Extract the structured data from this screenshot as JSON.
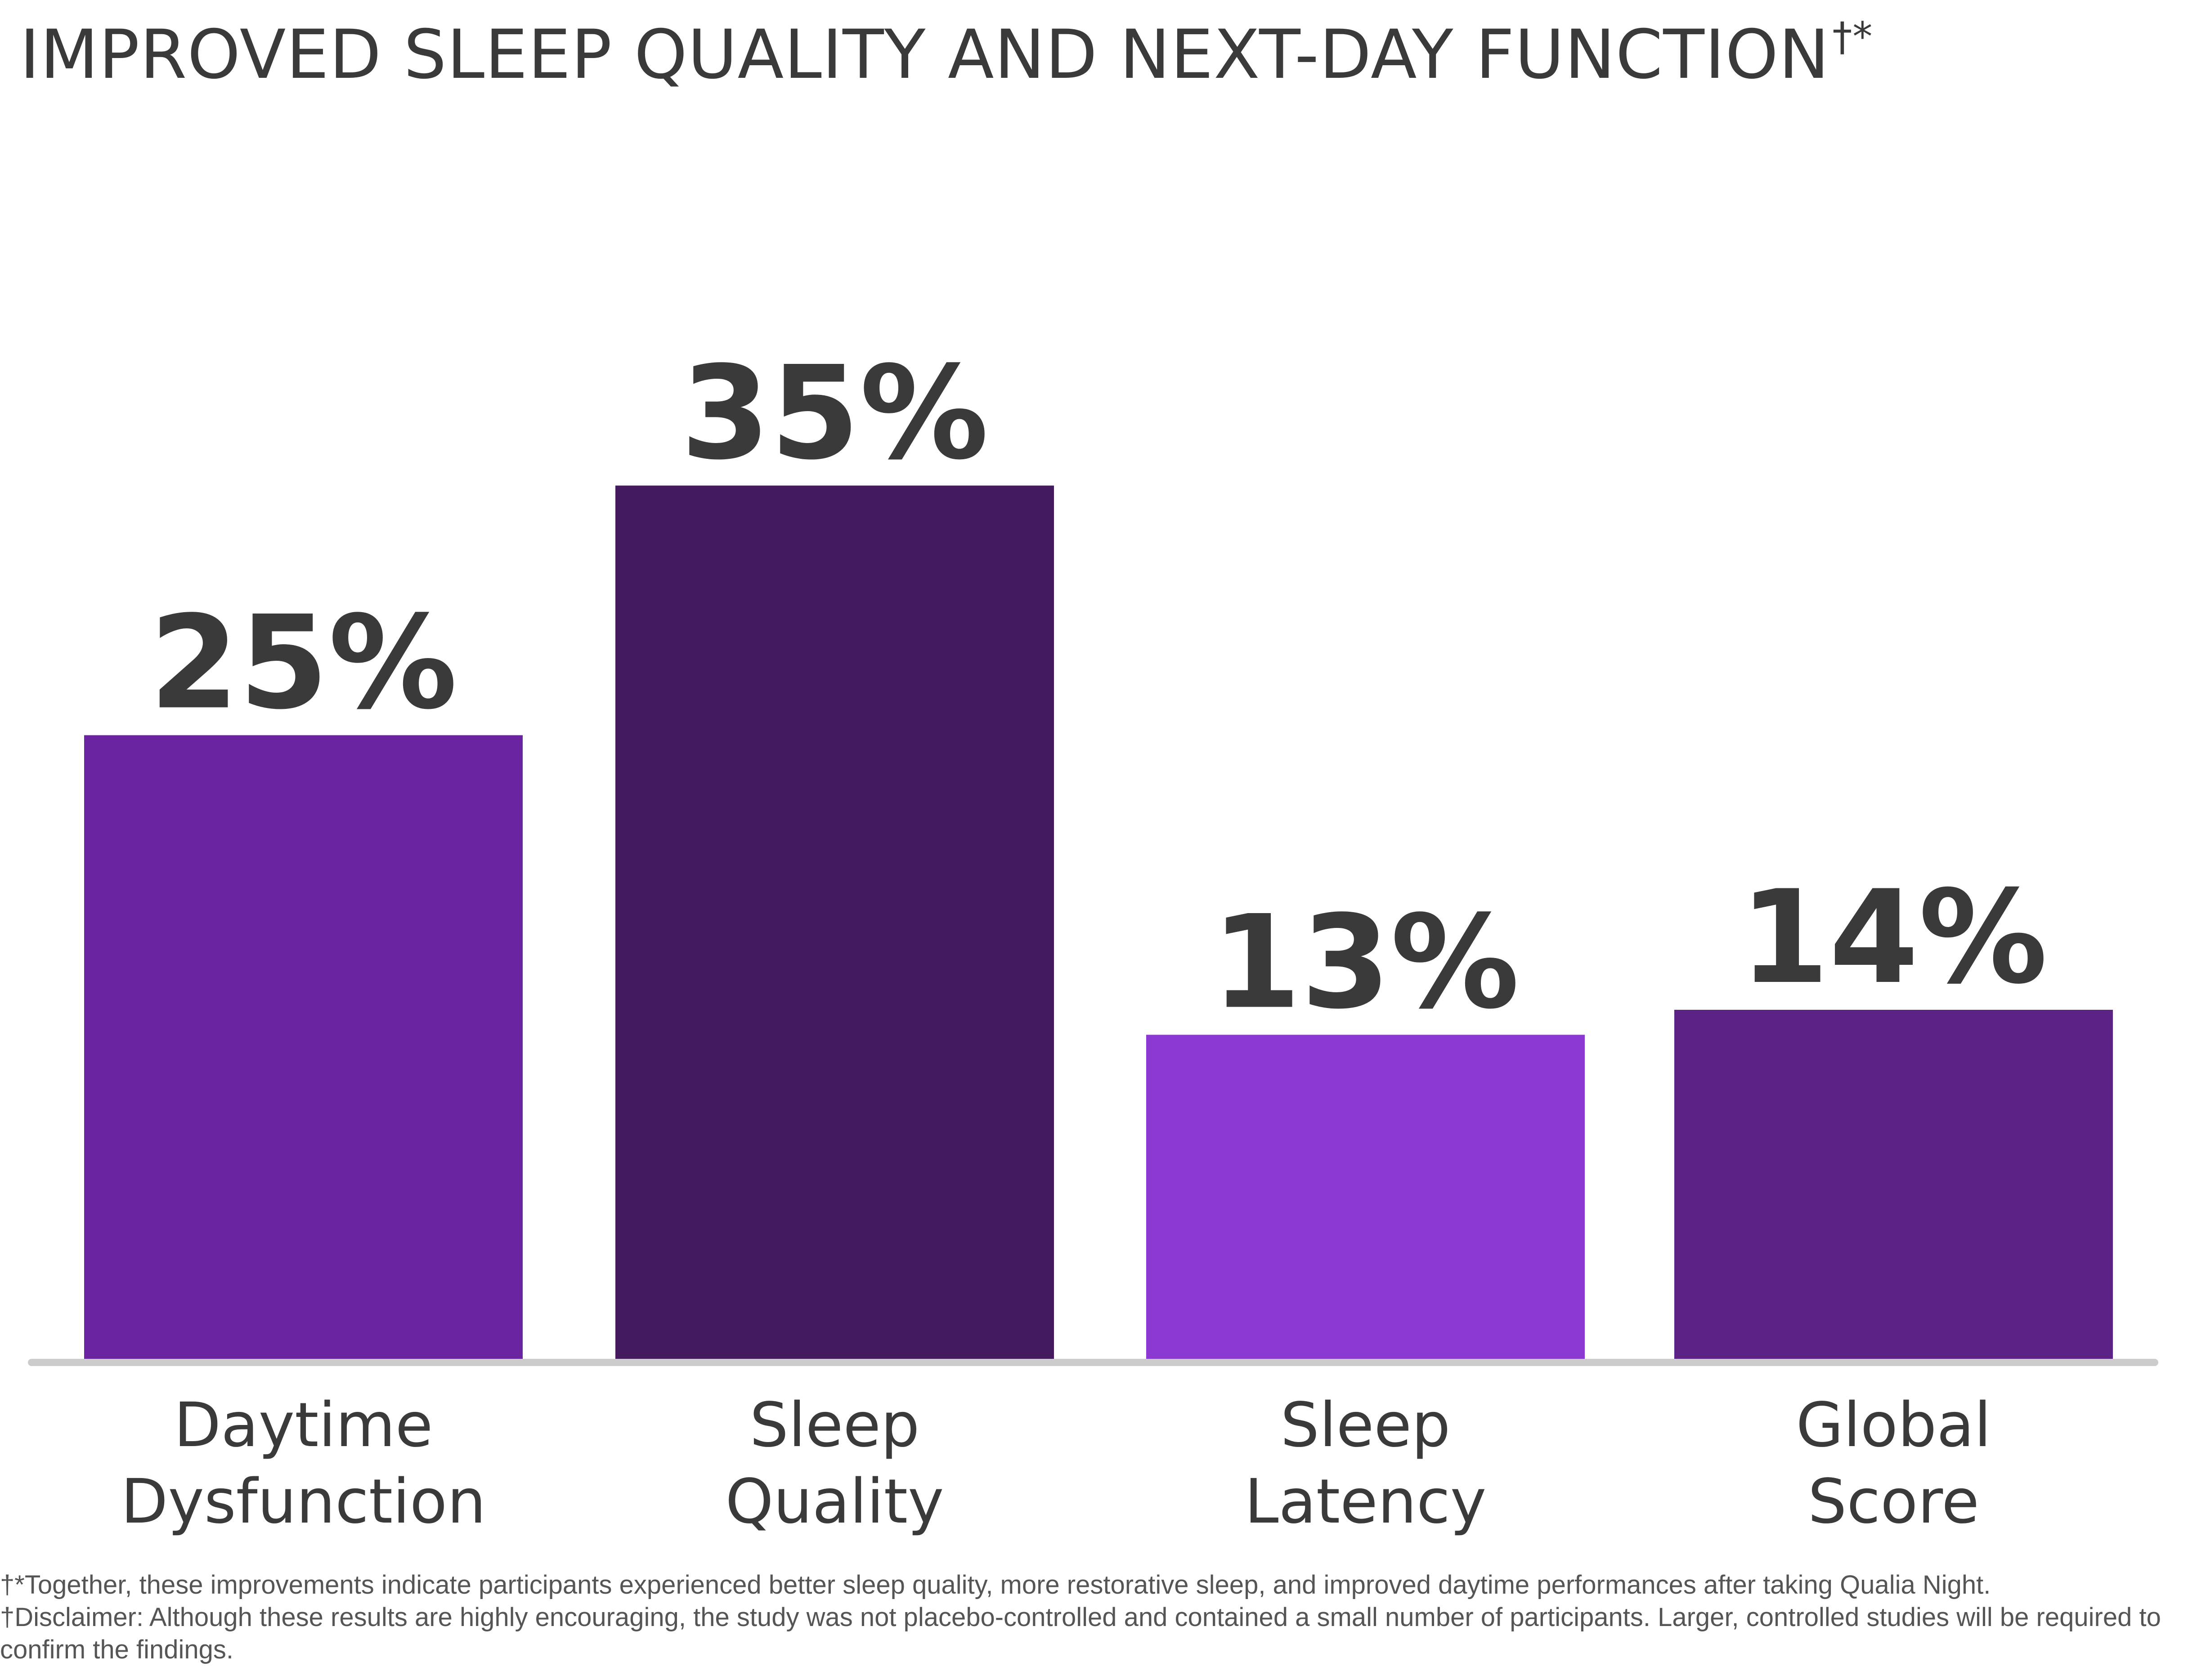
{
  "title": {
    "text": "IMPROVED SLEEP QUALITY AND NEXT-DAY FUNCTION",
    "marks": "†*"
  },
  "chart_data": {
    "type": "bar",
    "categories": [
      [
        "Daytime",
        "Dysfunction"
      ],
      [
        "Sleep",
        "Quality"
      ],
      [
        "Sleep",
        "Latency"
      ],
      [
        "Global",
        "Score"
      ]
    ],
    "values": [
      25,
      35,
      13,
      14
    ],
    "value_labels": [
      "25%",
      "35%",
      "13%",
      "14%"
    ],
    "bar_colors": [
      "#6a23a1",
      "#431a5e",
      "#8c39d3",
      "#5c2386"
    ],
    "axis_color": "#cccccc",
    "ylim": [
      0,
      35
    ],
    "grid": false,
    "legend": "none"
  },
  "footnotes": [
    "†*Together, these improvements indicate participants experienced better sleep quality, more restorative sleep, and improved daytime performances after taking Qualia Night.",
    "†Disclaimer: Although these results are highly encouraging, the study was not placebo-controlled and contained a small number of participants. Larger, controlled studies will be required to confirm the findings."
  ]
}
